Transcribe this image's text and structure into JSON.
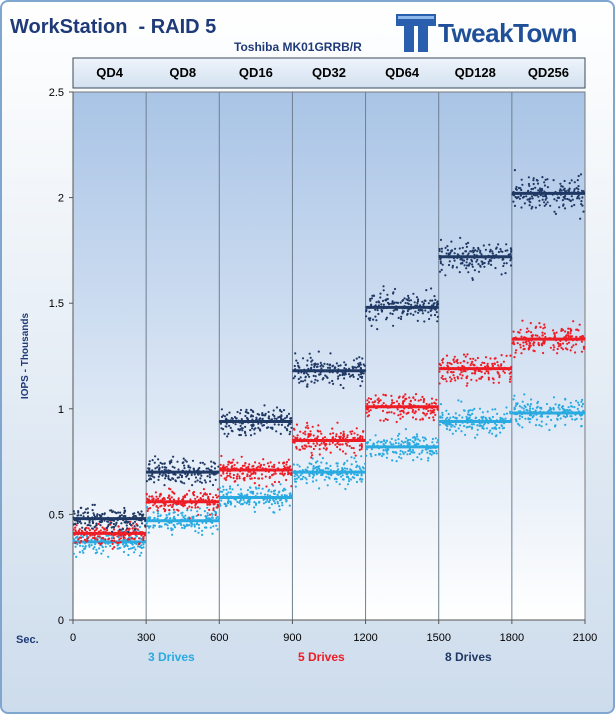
{
  "header": {
    "title": "WorkStation  - RAID 5",
    "subtitle": "Toshiba MK01GRRB/R",
    "logo_text": "TweakTown"
  },
  "chart_data": {
    "type": "scatter",
    "title": "WorkStation  - RAID 5",
    "subtitle": "Toshiba MK01GRRB/R",
    "xlabel": "Sec.",
    "ylabel": "IOPS - Thousands",
    "xlim": [
      0,
      2100
    ],
    "ylim": [
      0,
      2.5
    ],
    "x_ticks": [
      "0",
      "300",
      "600",
      "900",
      "1200",
      "1500",
      "1800",
      "2100"
    ],
    "y_ticks": [
      "0",
      "0.5",
      "1",
      "1.5",
      "2",
      "2.5"
    ],
    "grid": "vertical",
    "segments": [
      {
        "label": "QD4",
        "x": [
          0,
          300
        ]
      },
      {
        "label": "QD8",
        "x": [
          300,
          600
        ]
      },
      {
        "label": "QD16",
        "x": [
          600,
          900
        ]
      },
      {
        "label": "QD32",
        "x": [
          900,
          1200
        ]
      },
      {
        "label": "QD64",
        "x": [
          1200,
          1500
        ]
      },
      {
        "label": "QD128",
        "x": [
          1500,
          1800
        ]
      },
      {
        "label": "QD256",
        "x": [
          1800,
          2100
        ]
      }
    ],
    "series": [
      {
        "name": "3 Drives",
        "color": "#29aae1",
        "averages": [
          0.37,
          0.47,
          0.58,
          0.7,
          0.82,
          0.94,
          0.98
        ]
      },
      {
        "name": "5 Drives",
        "color": "#ee1c25",
        "averages": [
          0.41,
          0.56,
          0.71,
          0.85,
          1.01,
          1.19,
          1.33
        ]
      },
      {
        "name": "8 Drives",
        "color": "#1f3864",
        "averages": [
          0.48,
          0.7,
          0.94,
          1.18,
          1.48,
          1.72,
          2.02
        ]
      }
    ],
    "legend_position": "bottom"
  }
}
